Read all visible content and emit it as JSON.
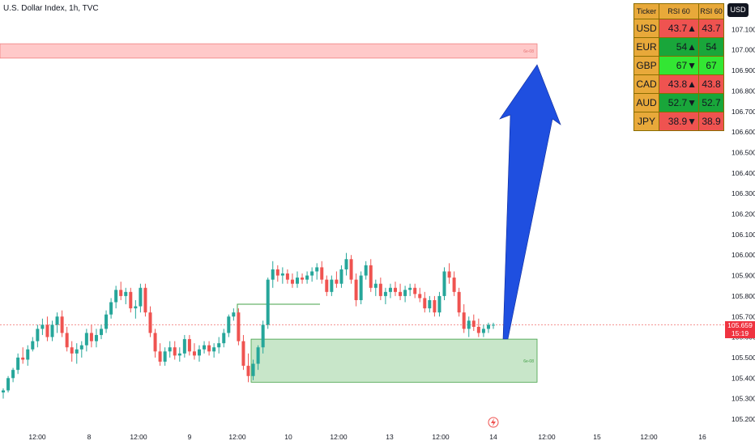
{
  "header": {
    "title": "U.S. Dollar Index, 1h, TVC",
    "currency_badge": "USD"
  },
  "price_tag": {
    "price": "105.659",
    "countdown": "15:19"
  },
  "rsi_table": {
    "headers": [
      "Ticker",
      "RSI 60",
      "RSI 60"
    ],
    "rows": [
      {
        "ticker": "USD",
        "value": "43.7▲",
        "value2": "43.7",
        "color": "red"
      },
      {
        "ticker": "EUR",
        "value": "54▲",
        "value2": "54",
        "color": "green"
      },
      {
        "ticker": "GBP",
        "value": "67▼",
        "value2": "67",
        "color": "lime"
      },
      {
        "ticker": "CAD",
        "value": "43.8▲",
        "value2": "43.8",
        "color": "red"
      },
      {
        "ticker": "AUD",
        "value": "52.7▼",
        "value2": "52.7",
        "color": "green"
      },
      {
        "ticker": "JPY",
        "value": "38.9▼",
        "value2": "38.9",
        "color": "red"
      }
    ]
  },
  "colors": {
    "up": "#26a69a",
    "down": "#ef5350",
    "arrow": "#1f4fe0",
    "supply_fill": "#ffc9c9",
    "demand_fill": "#c8e6c9"
  },
  "chart_data": {
    "type": "candlestick",
    "title": "U.S. Dollar Index, 1h, TVC",
    "ylim": [
      105.2,
      107.2
    ],
    "y_ticks": [
      "107.100",
      "107.000",
      "106.900",
      "106.800",
      "106.700",
      "106.600",
      "106.500",
      "106.400",
      "106.300",
      "106.200",
      "106.100",
      "106.000",
      "105.900",
      "105.800",
      "105.700",
      "105.600",
      "105.500",
      "105.400",
      "105.300",
      "105.200"
    ],
    "x_ticks": [
      "12:00",
      "8",
      "12:00",
      "9",
      "12:00",
      "10",
      "12:00",
      "13",
      "12:00",
      "14",
      "12:00",
      "15",
      "12:00",
      "16"
    ],
    "candles": [
      [
        105.33,
        105.35,
        105.3,
        105.34
      ],
      [
        105.34,
        105.41,
        105.33,
        105.4
      ],
      [
        105.4,
        105.45,
        105.38,
        105.44
      ],
      [
        105.44,
        105.52,
        105.42,
        105.5
      ],
      [
        105.5,
        105.55,
        105.47,
        105.49
      ],
      [
        105.49,
        105.56,
        105.46,
        105.54
      ],
      [
        105.54,
        105.6,
        105.53,
        105.58
      ],
      [
        105.58,
        105.66,
        105.55,
        105.64
      ],
      [
        105.64,
        105.69,
        105.61,
        105.66
      ],
      [
        105.66,
        105.7,
        105.58,
        105.6
      ],
      [
        105.6,
        105.68,
        105.58,
        105.66
      ],
      [
        105.66,
        105.72,
        105.62,
        105.7
      ],
      [
        105.7,
        105.73,
        105.6,
        105.62
      ],
      [
        105.62,
        105.65,
        105.53,
        105.55
      ],
      [
        105.55,
        105.58,
        105.48,
        105.52
      ],
      [
        105.52,
        105.57,
        105.47,
        105.54
      ],
      [
        105.54,
        105.58,
        105.5,
        105.56
      ],
      [
        105.56,
        105.64,
        105.53,
        105.62
      ],
      [
        105.62,
        105.66,
        105.55,
        105.58
      ],
      [
        105.58,
        105.64,
        105.55,
        105.61
      ],
      [
        105.61,
        105.66,
        105.59,
        105.64
      ],
      [
        105.64,
        105.73,
        105.62,
        105.71
      ],
      [
        105.71,
        105.79,
        105.69,
        105.77
      ],
      [
        105.77,
        105.85,
        105.74,
        105.83
      ],
      [
        105.83,
        105.87,
        105.78,
        105.8
      ],
      [
        105.8,
        105.84,
        105.76,
        105.82
      ],
      [
        105.82,
        105.84,
        105.72,
        105.74
      ],
      [
        105.74,
        105.78,
        105.69,
        105.75
      ],
      [
        105.75,
        105.86,
        105.72,
        105.84
      ],
      [
        105.84,
        105.86,
        105.7,
        105.72
      ],
      [
        105.72,
        105.75,
        105.6,
        105.62
      ],
      [
        105.62,
        105.64,
        105.5,
        105.53
      ],
      [
        105.53,
        105.57,
        105.46,
        105.48
      ],
      [
        105.48,
        105.55,
        105.46,
        105.53
      ],
      [
        105.53,
        105.58,
        105.5,
        105.55
      ],
      [
        105.55,
        105.58,
        105.49,
        105.51
      ],
      [
        105.51,
        105.55,
        105.48,
        105.52
      ],
      [
        105.52,
        105.61,
        105.5,
        105.59
      ],
      [
        105.59,
        105.61,
        105.51,
        105.53
      ],
      [
        105.53,
        105.57,
        105.49,
        105.51
      ],
      [
        105.51,
        105.56,
        105.48,
        105.54
      ],
      [
        105.54,
        105.58,
        105.52,
        105.56
      ],
      [
        105.56,
        105.58,
        105.51,
        105.53
      ],
      [
        105.53,
        105.57,
        105.5,
        105.55
      ],
      [
        105.55,
        105.6,
        105.52,
        105.57
      ],
      [
        105.57,
        105.64,
        105.55,
        105.62
      ],
      [
        105.62,
        105.71,
        105.6,
        105.7
      ],
      [
        105.7,
        105.74,
        105.68,
        105.72
      ],
      [
        105.72,
        105.74,
        105.56,
        105.58
      ],
      [
        105.58,
        105.61,
        105.44,
        105.46
      ],
      [
        105.46,
        105.52,
        105.38,
        105.41
      ],
      [
        105.41,
        105.49,
        105.39,
        105.47
      ],
      [
        105.47,
        105.56,
        105.44,
        105.55
      ],
      [
        105.55,
        105.68,
        105.52,
        105.66
      ],
      [
        105.66,
        105.89,
        105.64,
        105.88
      ],
      [
        105.88,
        105.97,
        105.84,
        105.93
      ],
      [
        105.93,
        105.95,
        105.87,
        105.9
      ],
      [
        105.9,
        105.94,
        105.86,
        105.91
      ],
      [
        105.91,
        105.93,
        105.86,
        105.88
      ],
      [
        105.88,
        105.91,
        105.84,
        105.86
      ],
      [
        105.86,
        105.92,
        105.84,
        105.89
      ],
      [
        105.89,
        105.91,
        105.86,
        105.88
      ],
      [
        105.88,
        105.92,
        105.86,
        105.9
      ],
      [
        105.9,
        105.94,
        105.87,
        105.92
      ],
      [
        105.92,
        105.96,
        105.88,
        105.94
      ],
      [
        105.94,
        105.97,
        105.86,
        105.88
      ],
      [
        105.88,
        105.9,
        105.8,
        105.82
      ],
      [
        105.82,
        105.9,
        105.8,
        105.88
      ],
      [
        105.88,
        105.92,
        105.84,
        105.86
      ],
      [
        105.86,
        105.95,
        105.84,
        105.93
      ],
      [
        105.93,
        106.01,
        105.9,
        105.98
      ],
      [
        105.98,
        106.0,
        105.86,
        105.88
      ],
      [
        105.88,
        105.91,
        105.75,
        105.78
      ],
      [
        105.78,
        105.92,
        105.76,
        105.9
      ],
      [
        105.9,
        105.97,
        105.88,
        105.95
      ],
      [
        105.95,
        105.98,
        105.82,
        105.84
      ],
      [
        105.84,
        105.88,
        105.8,
        105.86
      ],
      [
        105.86,
        105.89,
        105.78,
        105.8
      ],
      [
        105.8,
        105.84,
        105.76,
        105.82
      ],
      [
        105.82,
        105.86,
        105.79,
        105.84
      ],
      [
        105.84,
        105.87,
        105.8,
        105.82
      ],
      [
        105.82,
        105.86,
        105.78,
        105.8
      ],
      [
        105.8,
        105.85,
        105.77,
        105.83
      ],
      [
        105.83,
        105.86,
        105.8,
        105.84
      ],
      [
        105.84,
        105.86,
        105.79,
        105.81
      ],
      [
        105.81,
        105.84,
        105.77,
        105.79
      ],
      [
        105.79,
        105.82,
        105.72,
        105.74
      ],
      [
        105.74,
        105.8,
        105.72,
        105.78
      ],
      [
        105.78,
        105.8,
        105.7,
        105.72
      ],
      [
        105.72,
        105.82,
        105.7,
        105.8
      ],
      [
        105.8,
        105.94,
        105.78,
        105.92
      ],
      [
        105.92,
        105.96,
        105.86,
        105.89
      ],
      [
        105.89,
        105.92,
        105.8,
        105.82
      ],
      [
        105.82,
        105.84,
        105.7,
        105.72
      ],
      [
        105.72,
        105.76,
        105.62,
        105.64
      ],
      [
        105.64,
        105.7,
        105.6,
        105.68
      ],
      [
        105.68,
        105.71,
        105.63,
        105.65
      ],
      [
        105.65,
        105.69,
        105.6,
        105.62
      ],
      [
        105.62,
        105.66,
        105.6,
        105.64
      ],
      [
        105.64,
        105.67,
        105.62,
        105.66
      ],
      [
        105.66,
        105.67,
        105.64,
        105.66
      ]
    ],
    "last_price": 105.659,
    "zones": [
      {
        "type": "supply",
        "label": "6e-08",
        "top": 107.03,
        "bottom": 106.96
      },
      {
        "type": "demand",
        "label": "6e-08",
        "top": 105.59,
        "bottom": 105.38
      }
    ],
    "level_line": {
      "price": 105.76
    },
    "projection": "upward arrow from demand zone toward supply zone"
  }
}
